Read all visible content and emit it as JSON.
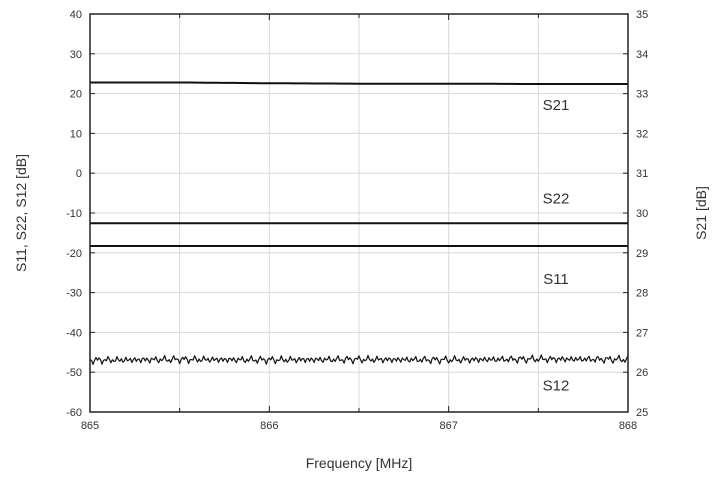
{
  "chart_data": {
    "type": "line",
    "title": "",
    "xlabel": "Frequency [MHz]",
    "ylabel_left": "S11, S22, S12 [dB]",
    "ylabel_right": "S21 [dB]",
    "x": [
      865,
      865.5,
      866,
      866.5,
      867,
      867.5,
      868
    ],
    "xlim": [
      865,
      868
    ],
    "ylim_left": [
      -60,
      40
    ],
    "ylim_right": [
      25,
      35
    ],
    "xticks": [
      "865",
      "866",
      "867",
      "868"
    ],
    "yticks_left": [
      "40",
      "30",
      "20",
      "10",
      "0",
      "-10",
      "-20",
      "-30",
      "-40",
      "-50",
      "-60"
    ],
    "yticks_right": [
      "35",
      "34",
      "33",
      "32",
      "31",
      "30",
      "29",
      "28",
      "27",
      "26",
      "25"
    ],
    "grid": true,
    "series": [
      {
        "name": "S21",
        "axis": "left",
        "color": "#111111",
        "values": [
          22.8,
          22.8,
          22.6,
          22.5,
          22.5,
          22.4,
          22.4
        ]
      },
      {
        "name": "S22",
        "axis": "left",
        "color": "#111111",
        "values": [
          -12.6,
          -12.6,
          -12.6,
          -12.6,
          -12.6,
          -12.6,
          -12.6
        ]
      },
      {
        "name": "S11",
        "axis": "left",
        "color": "#111111",
        "values": [
          -18.3,
          -18.3,
          -18.3,
          -18.3,
          -18.3,
          -18.3,
          -18.3
        ]
      },
      {
        "name": "S12",
        "axis": "left",
        "color": "#111111",
        "values": [
          -47.0,
          -46.8,
          -46.9,
          -46.8,
          -46.9,
          -46.7,
          -46.8
        ]
      }
    ]
  }
}
